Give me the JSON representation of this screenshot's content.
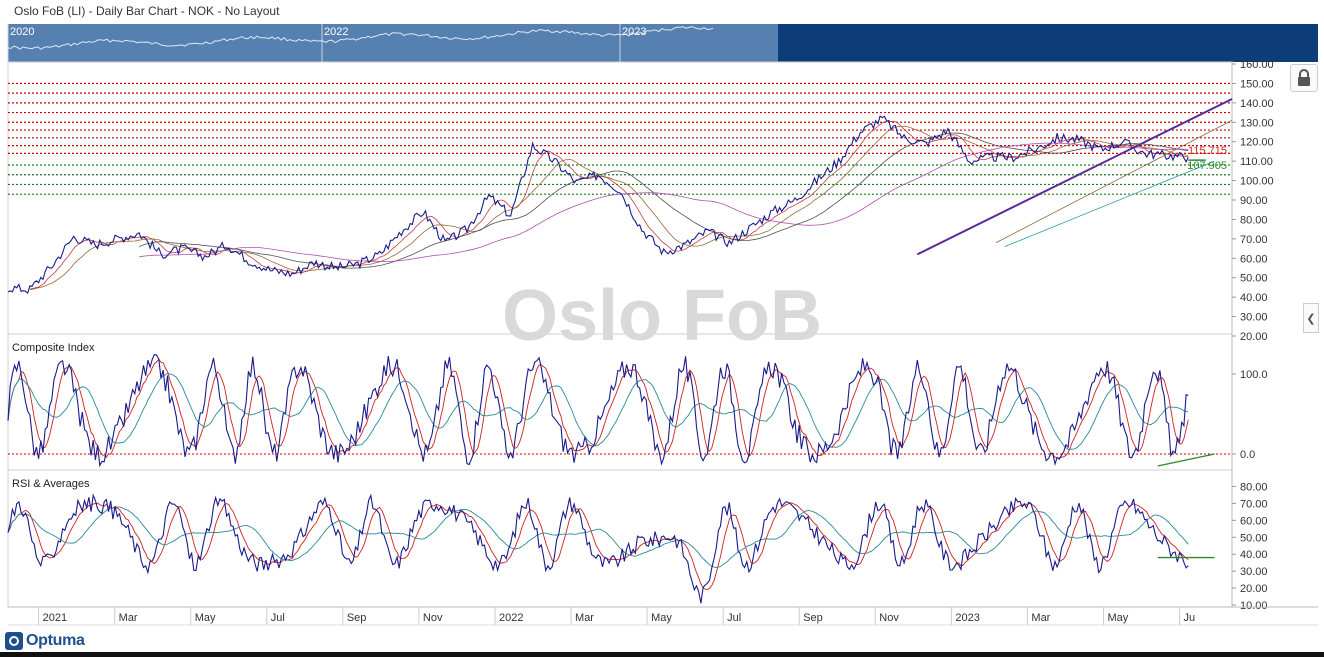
{
  "header": {
    "title": "Oslo FoB (LI) - Daily Bar Chart - NOK - No Layout"
  },
  "watermark": "Oslo FoB",
  "logo_text": "Optuma",
  "overview": {
    "labels": [
      "2020",
      "2022",
      "2023"
    ]
  },
  "chart_data": [
    {
      "panel": "price",
      "type": "line",
      "title": "",
      "ylim": [
        20,
        160
      ],
      "y_ticks": [
        "160.00",
        "150.00",
        "140.00",
        "130.00",
        "120.00",
        "110.00",
        "100.00",
        "90.00",
        "80.00",
        "70.00",
        "60.00",
        "50.00",
        "40.00",
        "30.00",
        "20.00"
      ],
      "x_ticks": [
        "2021",
        "Mar",
        "May",
        "Jul",
        "Sep",
        "Nov",
        "2022",
        "Mar",
        "May",
        "Jul",
        "Sep",
        "Nov",
        "2023",
        "Mar",
        "May",
        "Ju"
      ],
      "x_range": [
        0,
        28
      ],
      "annotations": [
        {
          "text": "115.715",
          "y": 115.715,
          "color": "#d62020"
        },
        {
          "text": "107.905",
          "y": 107.905,
          "color": "#2a8a2a"
        }
      ],
      "levels_red": [
        150,
        145,
        140,
        135,
        130,
        126,
        122,
        118,
        114
      ],
      "levels_green": [
        108,
        103,
        98,
        93
      ],
      "series": [
        {
          "color": "#1a1a8a",
          "x": [
            0,
            0.5,
            1,
            1.5,
            2,
            2.5,
            3,
            3.5,
            4,
            4.5,
            5,
            5.5,
            6,
            6.5,
            7,
            7.5,
            8,
            8.5,
            9,
            9.5,
            10,
            10.5,
            11,
            11.5,
            12,
            12.5,
            13,
            13.5,
            14,
            14.5,
            15,
            15.5,
            16,
            16.5,
            17,
            17.5,
            18,
            18.5,
            19,
            19.5,
            20,
            20.5,
            21,
            21.5,
            22,
            22.5,
            23,
            23.5,
            24,
            24.5,
            25,
            25.5,
            26,
            26.5,
            27
          ],
          "y": [
            45,
            44,
            56,
            71,
            67,
            70,
            73,
            62,
            65,
            61,
            67,
            59,
            54,
            52,
            58,
            55,
            57,
            62,
            74,
            84,
            68,
            75,
            92,
            82,
            118,
            110,
            99,
            103,
            95,
            75,
            63,
            67,
            74,
            68,
            76,
            84,
            90,
            100,
            110,
            125,
            132,
            122,
            119,
            126,
            110,
            112,
            112,
            116,
            122,
            121,
            116,
            120,
            114,
            113,
            112
          ]
        }
      ]
    },
    {
      "panel": "composite",
      "type": "line",
      "title": "Composite Index",
      "ylim": [
        -20,
        150
      ],
      "y_ticks": [
        "100.0",
        "0.0"
      ]
    },
    {
      "panel": "rsi",
      "type": "line",
      "title": "RSI & Averages",
      "ylim": [
        10,
        85
      ],
      "y_ticks": [
        "80.00",
        "70.00",
        "60.00",
        "50.00",
        "40.00",
        "30.00",
        "20.00",
        "10.00"
      ]
    }
  ]
}
